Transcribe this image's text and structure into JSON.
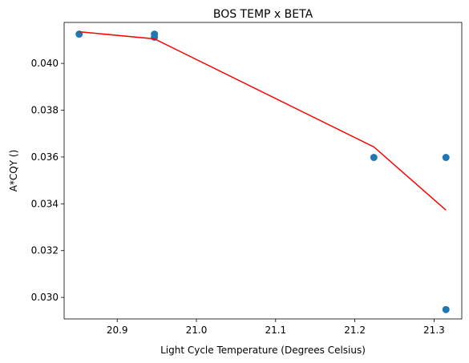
{
  "chart_data": {
    "type": "scatter",
    "title": "BOS TEMP x BETA",
    "xlabel": "Light Cycle Temperature (Degrees Celsius)",
    "ylabel": "A*CQY ()",
    "xlim": [
      20.833,
      21.335
    ],
    "ylim": [
      0.02908,
      0.04175
    ],
    "x_ticks": [
      20.9,
      21.0,
      21.1,
      21.2,
      21.3
    ],
    "x_tick_labels": [
      "20.9",
      "21.0",
      "21.1",
      "21.2",
      "21.3"
    ],
    "y_ticks": [
      0.03,
      0.032,
      0.034,
      0.036,
      0.038,
      0.04
    ],
    "y_tick_labels": [
      "0.030",
      "0.032",
      "0.034",
      "0.036",
      "0.038",
      "0.040"
    ],
    "grid": false,
    "series": [
      {
        "kind": "scatter",
        "color": "#1f77b4",
        "points": [
          {
            "x": 20.852,
            "y": 0.04125
          },
          {
            "x": 20.947,
            "y": 0.04125
          },
          {
            "x": 20.947,
            "y": 0.04112
          },
          {
            "x": 21.224,
            "y": 0.03598
          },
          {
            "x": 21.315,
            "y": 0.03598
          },
          {
            "x": 21.315,
            "y": 0.02948
          }
        ]
      },
      {
        "kind": "line",
        "color": "#ff0000",
        "points": [
          {
            "x": 20.852,
            "y": 0.04135
          },
          {
            "x": 20.947,
            "y": 0.04105
          },
          {
            "x": 21.224,
            "y": 0.03643
          },
          {
            "x": 21.315,
            "y": 0.03373
          }
        ]
      }
    ]
  }
}
